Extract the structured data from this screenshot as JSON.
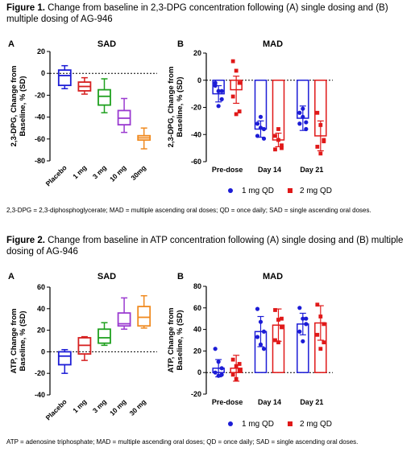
{
  "figure1": {
    "label": "Figure 1.",
    "caption": "Change from baseline in 2,3-DPG concentration following (A) single dosing and (B) multiple dosing of AG-946",
    "footnote": "2,3-DPG = 2,3-diphosphoglycerate; MAD = multiple ascending oral doses; QD = once daily; SAD = single ascending oral doses."
  },
  "figure2": {
    "label": "Figure 2.",
    "caption": "Change from baseline in ATP concentration following (A) single dosing and (B) multiple dosing of AG-946",
    "footnote": "ATP = adenosine triphosphate; MAD = multiple ascending oral doses; QD = once daily; SAD = single ascending oral doses."
  },
  "colors": {
    "placebo": "#1c1cd6",
    "1mg": "#d62020",
    "3mg": "#1fa01f",
    "10mg": "#9a3ad0",
    "30mg": "#f08a20",
    "mad_1mg": "#1c1cd6",
    "mad_2mg": "#e01818"
  },
  "chart_data": [
    {
      "id": "f1a",
      "type": "box",
      "panel": "A",
      "title": "SAD",
      "ylabel": "2,3-DPG, Change from Baseline, % (SD)",
      "ylim": [
        -80,
        20
      ],
      "yticks": [
        20,
        0,
        -20,
        -40,
        -60,
        -80
      ],
      "reference_line": 0,
      "categories": [
        "Placebo",
        "1 mg",
        "3 mg",
        "10 mg",
        "30mg"
      ],
      "boxes": [
        {
          "min": -14,
          "q1": -11,
          "median": -2,
          "q3": 3,
          "max": 7
        },
        {
          "min": -19,
          "q1": -16,
          "median": -12,
          "q3": -8,
          "max": -4
        },
        {
          "min": -36,
          "q1": -29,
          "median": -21,
          "q3": -15,
          "max": -5
        },
        {
          "min": -54,
          "q1": -47,
          "median": -41,
          "q3": -34,
          "max": -23
        },
        {
          "min": -69,
          "q1": -61,
          "median": -59,
          "q3": -57,
          "max": -50
        }
      ]
    },
    {
      "id": "f1b",
      "type": "bar",
      "panel": "B",
      "title": "MAD",
      "ylabel": "2,3-DPG, Change from Baseline, % (SD)",
      "ylim": [
        -60,
        20
      ],
      "yticks": [
        20,
        0,
        -20,
        -40,
        -60
      ],
      "reference_line": 0,
      "categories": [
        "Pre-dose",
        "Day 14",
        "Day 21"
      ],
      "series": [
        {
          "name": "1 mg QD",
          "means": [
            -10,
            -36,
            -28
          ],
          "sd": [
            6,
            6,
            9
          ],
          "points": [
            [
              -4,
              -8,
              -14,
              -2,
              -19,
              -8
            ],
            [
              -32,
              -35,
              -36,
              -41,
              -27,
              -43
            ],
            [
              -24,
              -27,
              -31,
              -32,
              -21,
              -36
            ]
          ]
        },
        {
          "name": "2 mg QD",
          "means": [
            -7,
            -44,
            -41
          ],
          "sd": [
            10,
            5,
            11
          ],
          "points": [
            [
              14,
              7,
              -2,
              -12,
              -25,
              -23
            ],
            [
              -41,
              -44,
              -48,
              -51,
              -36,
              -50
            ],
            [
              -24,
              -33,
              -45,
              -49,
              -54,
              -44
            ]
          ]
        }
      ],
      "legend": "bottom"
    },
    {
      "id": "f2a",
      "type": "box",
      "panel": "A",
      "title": "SAD",
      "ylabel": "ATP, Change from Baseline, % (SD)",
      "ylim": [
        -40,
        60
      ],
      "yticks": [
        60,
        40,
        20,
        0,
        -20,
        -40
      ],
      "reference_line": 0,
      "categories": [
        "Placebo",
        "1 mg",
        "3 mg",
        "10 mg",
        "30 mg"
      ],
      "boxes": [
        {
          "min": -20,
          "q1": -12,
          "median": -4,
          "q3": 0,
          "max": 2
        },
        {
          "min": -8,
          "q1": -2,
          "median": 6,
          "q3": 13,
          "max": 14
        },
        {
          "min": 6,
          "q1": 8,
          "median": 13,
          "q3": 21,
          "max": 27
        },
        {
          "min": 21,
          "q1": 24,
          "median": 26,
          "q3": 36,
          "max": 50
        },
        {
          "min": 22,
          "q1": 24,
          "median": 32,
          "q3": 42,
          "max": 52
        }
      ]
    },
    {
      "id": "f2b",
      "type": "bar",
      "panel": "B",
      "title": "MAD",
      "ylabel": "ATP, Change from Baseline, % (SD)",
      "ylim": [
        -20,
        80
      ],
      "yticks": [
        80,
        60,
        40,
        20,
        0,
        -20
      ],
      "reference_line": 0,
      "categories": [
        "Pre-dose",
        "Day 14",
        "Day 21"
      ],
      "series": [
        {
          "name": "1 mg QD",
          "means": [
            4,
            38,
            45
          ],
          "sd": [
            8,
            14,
            10
          ],
          "points": [
            [
              22,
              10,
              4,
              0,
              -3,
              -2
            ],
            [
              59,
              47,
              38,
              33,
              26,
              22
            ],
            [
              60,
              50,
              45,
              38,
              29,
              50
            ]
          ]
        },
        {
          "name": "2 mg QD",
          "means": [
            4,
            44,
            46
          ],
          "sd": [
            12,
            15,
            16
          ],
          "points": [
            [
              12,
              6,
              2,
              -2,
              -6,
              8
            ],
            [
              58,
              49,
              42,
              30,
              28,
              50
            ],
            [
              63,
              52,
              45,
              35,
              22,
              28
            ]
          ]
        }
      ],
      "legend": "bottom"
    }
  ]
}
